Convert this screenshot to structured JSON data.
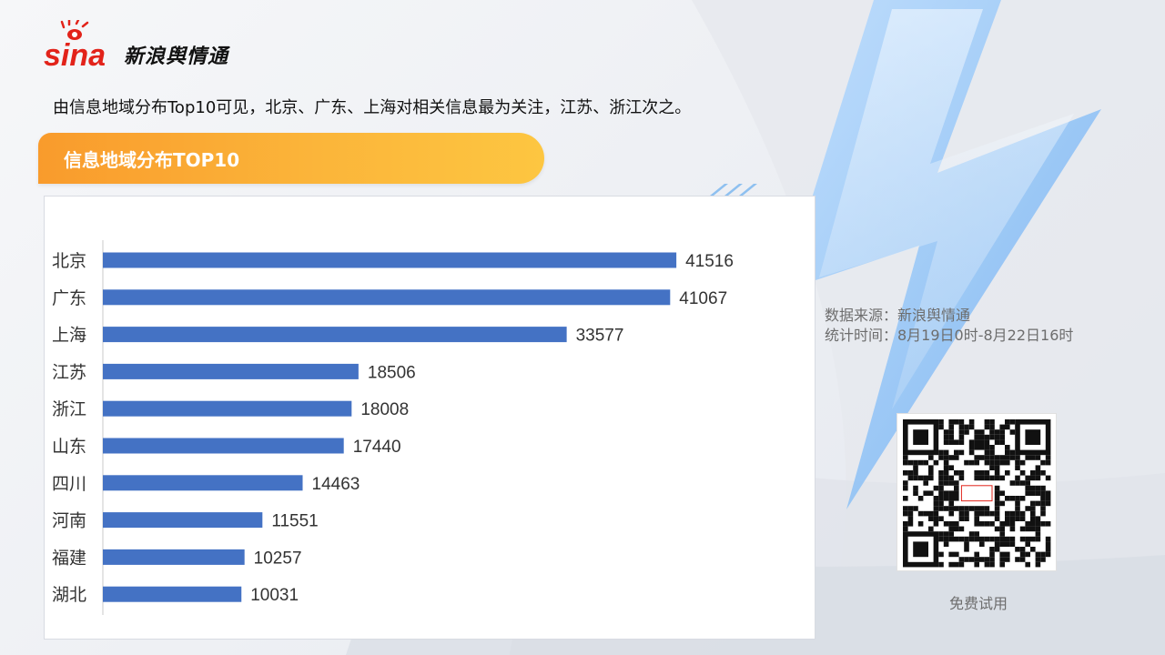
{
  "header": {
    "logo_brand": "sina",
    "logo_text": "新浪舆情通",
    "summary": "由信息地域分布Top10可见，北京、广东、上海对相关信息最为关注，江苏、浙江次之。"
  },
  "section": {
    "title": "信息地域分布TOP10"
  },
  "side": {
    "source_line": "数据来源：新浪舆情通",
    "time_line": "统计时间：8月19日0时-8月22日16时",
    "qr_caption": "免费试用"
  },
  "colors": {
    "bar": "#4472c4",
    "accent_orange": "#f99b2c",
    "accent_blue": "#8ec0f0"
  },
  "chart_data": {
    "type": "bar",
    "orientation": "horizontal",
    "categories": [
      "北京",
      "广东",
      "上海",
      "江苏",
      "浙江",
      "山东",
      "四川",
      "河南",
      "福建",
      "湖北"
    ],
    "values": [
      41516,
      41067,
      33577,
      18506,
      18008,
      17440,
      14463,
      11551,
      10257,
      10031
    ],
    "xlim": [
      0,
      45000
    ],
    "data_labels": true,
    "grid": false,
    "legend": "none"
  }
}
